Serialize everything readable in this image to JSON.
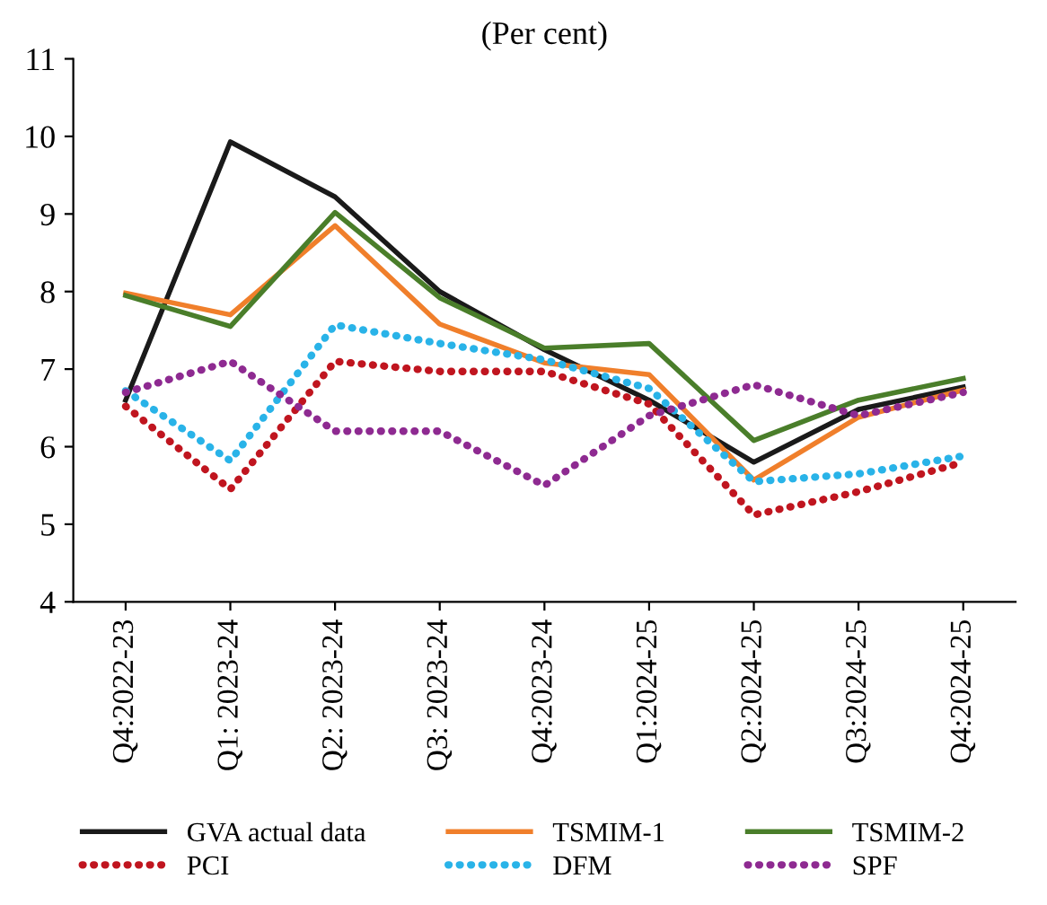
{
  "chart_data": {
    "type": "line",
    "title": "(Per cent)",
    "categories": [
      "Q4:2022-23",
      "Q1: 2023-24",
      "Q2: 2023-24",
      "Q3: 2023-24",
      "Q4:2023-24",
      "Q1:2024-25",
      "Q2:2024-25",
      "Q3:2024-25",
      "Q4:2024-25"
    ],
    "series": [
      {
        "name": "GVA actual data",
        "color": "#1a1a1a",
        "line_style": "solid",
        "values": [
          6.6,
          9.93,
          9.22,
          8.0,
          7.25,
          6.6,
          5.8,
          6.48,
          6.77
        ]
      },
      {
        "name": "TSMIM-1",
        "color": "#f07f2b",
        "line_style": "solid",
        "values": [
          7.98,
          7.7,
          8.85,
          7.58,
          7.08,
          6.93,
          5.57,
          6.38,
          6.73
        ]
      },
      {
        "name": "TSMIM-2",
        "color": "#4a7e2a",
        "line_style": "solid",
        "values": [
          7.95,
          7.55,
          9.02,
          7.92,
          7.27,
          7.33,
          6.08,
          6.6,
          6.88
        ]
      },
      {
        "name": "PCI",
        "color": "#c0151f",
        "line_style": "dotted",
        "values": [
          6.52,
          5.45,
          7.1,
          6.97,
          6.97,
          6.55,
          5.12,
          5.42,
          5.8
        ]
      },
      {
        "name": "DFM",
        "color": "#29b3e8",
        "line_style": "dotted",
        "values": [
          6.72,
          5.82,
          7.57,
          7.33,
          7.12,
          6.75,
          5.55,
          5.65,
          5.88
        ]
      },
      {
        "name": "SPF",
        "color": "#8e2a91",
        "line_style": "dotted",
        "values": [
          6.7,
          7.1,
          6.2,
          6.2,
          5.5,
          6.4,
          6.8,
          6.4,
          6.7
        ]
      }
    ],
    "ylim": [
      4,
      11
    ],
    "yticks": [
      4,
      5,
      6,
      7,
      8,
      9,
      10,
      11
    ],
    "grid": false,
    "legend": "bottom",
    "marker": "none"
  }
}
